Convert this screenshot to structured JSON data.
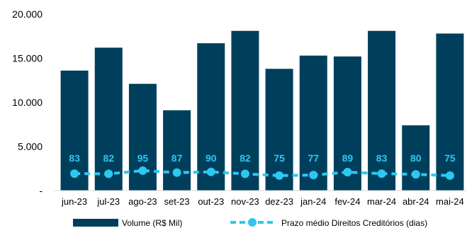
{
  "chart_data": {
    "type": "bar",
    "categories": [
      "jun-23",
      "jul-23",
      "ago-23",
      "set-23",
      "out-23",
      "nov-23",
      "dez-23",
      "jan-24",
      "fev-24",
      "mar-24",
      "abr-24",
      "mai-24"
    ],
    "series": [
      {
        "name": "Volume (R$ Mil)",
        "type": "bar",
        "axis": "left",
        "color": "#003F5C",
        "values": [
          13600,
          16200,
          12100,
          9100,
          16700,
          18100,
          13800,
          15300,
          15200,
          18100,
          7400,
          17800
        ]
      },
      {
        "name": "Prazo médio Direitos Creditórios (dias)",
        "type": "line",
        "axis": "secondary",
        "style": "dashed",
        "color": "#2EC7F2",
        "values": [
          83,
          82,
          95,
          87,
          90,
          82,
          75,
          77,
          89,
          83,
          80,
          75
        ],
        "labels": [
          "83",
          "82",
          "95",
          "87",
          "90",
          "82",
          "75",
          "77",
          "89",
          "83",
          "80",
          "75"
        ]
      }
    ],
    "yticks": [
      "20.000",
      "15.000",
      "10.000",
      "5.000",
      "-"
    ],
    "ylim": [
      0,
      20000
    ],
    "legend_position": "bottom",
    "grid": false
  }
}
